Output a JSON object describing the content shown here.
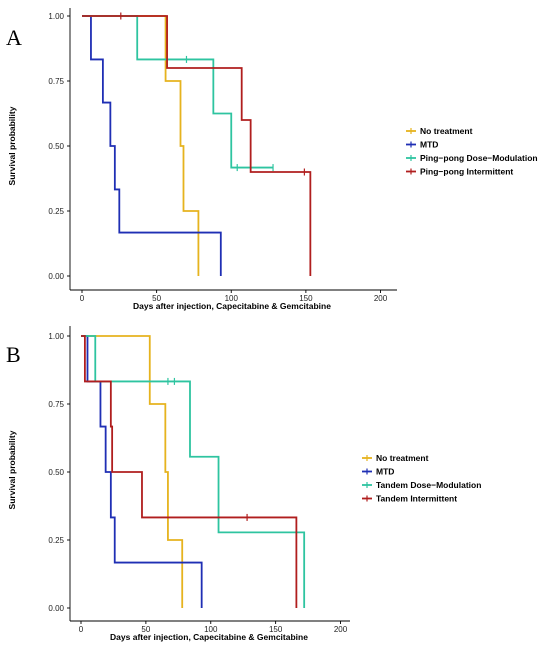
{
  "chart_data": [
    {
      "type": "line",
      "panel": "A",
      "xlabel": "Days after injection, Capecitabine & Gemcitabine",
      "ylabel": "Survival probability",
      "xlim": [
        0,
        200
      ],
      "ylim": [
        0,
        1
      ],
      "x_ticks": [
        "0",
        "50",
        "100",
        "150",
        "200"
      ],
      "y_ticks": [
        "0.00",
        "0.25",
        "0.50",
        "0.75",
        "1.00"
      ],
      "legend_position": "right",
      "series": [
        {
          "name": "No treatment",
          "color": "#E6B31E",
          "steps": [
            [
              0,
              1
            ],
            [
              56,
              1
            ],
            [
              56,
              0.75
            ],
            [
              66,
              0.75
            ],
            [
              66,
              0.5
            ],
            [
              68,
              0.5
            ],
            [
              68,
              0.25
            ],
            [
              78,
              0.25
            ],
            [
              78,
              0
            ]
          ],
          "censored": []
        },
        {
          "name": "MTD",
          "color": "#1F2FB4",
          "steps": [
            [
              0,
              1
            ],
            [
              6,
              1
            ],
            [
              6,
              0.833
            ],
            [
              14,
              0.833
            ],
            [
              14,
              0.667
            ],
            [
              19,
              0.667
            ],
            [
              19,
              0.5
            ],
            [
              22,
              0.5
            ],
            [
              22,
              0.333
            ],
            [
              25,
              0.333
            ],
            [
              25,
              0.167
            ],
            [
              93,
              0.167
            ],
            [
              93,
              0
            ]
          ],
          "censored": []
        },
        {
          "name": "Ping−pong Dose−Modulation",
          "color": "#2EC4A0",
          "steps": [
            [
              0,
              1
            ],
            [
              37,
              1
            ],
            [
              37,
              0.833
            ],
            [
              88,
              0.833
            ],
            [
              88,
              0.625
            ],
            [
              100,
              0.625
            ],
            [
              100,
              0.417
            ],
            [
              128,
              0.417
            ]
          ],
          "censored": [
            [
              70,
              0.833
            ],
            [
              104,
              0.417
            ],
            [
              128,
              0.417
            ]
          ]
        },
        {
          "name": "Ping−pong Intermittent",
          "color": "#B01E1E",
          "steps": [
            [
              0,
              1
            ],
            [
              57,
              1
            ],
            [
              57,
              0.8
            ],
            [
              107,
              0.8
            ],
            [
              107,
              0.6
            ],
            [
              113,
              0.6
            ],
            [
              113,
              0.4
            ],
            [
              153,
              0.4
            ],
            [
              153,
              0
            ]
          ],
          "censored": [
            [
              26,
              1
            ],
            [
              149,
              0.4
            ]
          ]
        }
      ]
    },
    {
      "type": "line",
      "panel": "B",
      "xlabel": "Days after injection, Capecitabine & Gemcitabine",
      "ylabel": "Survival probability",
      "xlim": [
        0,
        200
      ],
      "ylim": [
        0,
        1
      ],
      "x_ticks": [
        "0",
        "50",
        "100",
        "150",
        "200"
      ],
      "y_ticks": [
        "0.00",
        "0.25",
        "0.50",
        "0.75",
        "1.00"
      ],
      "legend_position": "right",
      "series": [
        {
          "name": "No treatment",
          "color": "#E6B31E",
          "steps": [
            [
              0,
              1
            ],
            [
              53,
              1
            ],
            [
              53,
              0.75
            ],
            [
              65,
              0.75
            ],
            [
              65,
              0.5
            ],
            [
              67,
              0.5
            ],
            [
              67,
              0.25
            ],
            [
              78,
              0.25
            ],
            [
              78,
              0
            ]
          ],
          "censored": []
        },
        {
          "name": "MTD",
          "color": "#1F2FB4",
          "steps": [
            [
              0,
              1
            ],
            [
              5,
              1
            ],
            [
              5,
              0.833
            ],
            [
              15,
              0.833
            ],
            [
              15,
              0.667
            ],
            [
              19,
              0.667
            ],
            [
              19,
              0.5
            ],
            [
              23,
              0.5
            ],
            [
              23,
              0.333
            ],
            [
              26,
              0.333
            ],
            [
              26,
              0.167
            ],
            [
              93,
              0.167
            ],
            [
              93,
              0
            ]
          ],
          "censored": []
        },
        {
          "name": "Tandem Dose−Modulation",
          "color": "#2EC4A0",
          "steps": [
            [
              0,
              1
            ],
            [
              11,
              1
            ],
            [
              11,
              0.833
            ],
            [
              84,
              0.833
            ],
            [
              84,
              0.556
            ],
            [
              106,
              0.556
            ],
            [
              106,
              0.278
            ],
            [
              172,
              0.278
            ],
            [
              172,
              0
            ]
          ],
          "censored": [
            [
              67,
              0.833
            ],
            [
              72,
              0.833
            ]
          ]
        },
        {
          "name": "Tandem Intermittent",
          "color": "#B01E1E",
          "steps": [
            [
              0,
              1
            ],
            [
              3,
              1
            ],
            [
              3,
              0.833
            ],
            [
              23,
              0.833
            ],
            [
              23,
              0.667
            ],
            [
              24,
              0.667
            ],
            [
              24,
              0.5
            ],
            [
              47,
              0.5
            ],
            [
              47,
              0.333
            ],
            [
              166,
              0.333
            ],
            [
              166,
              0
            ]
          ],
          "censored": [
            [
              128,
              0.333
            ]
          ]
        }
      ]
    }
  ]
}
